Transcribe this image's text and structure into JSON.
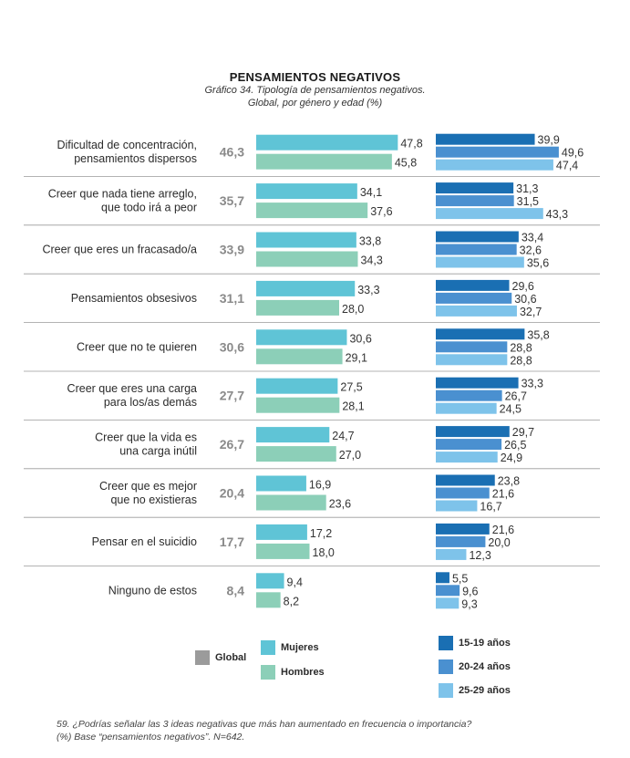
{
  "title": "PENSAMIENTOS NEGATIVOS",
  "subtitle_line1": "Gráfico 34. Tipología de pensamientos negativos.",
  "subtitle_line2": "Global, por género y edad (%)",
  "colors": {
    "global": "#9b9b9b",
    "mujeres": "#5fc4d6",
    "hombres": "#8ccfb8",
    "age_15_19": "#1a6fb3",
    "age_20_24": "#4a90d0",
    "age_25_29": "#7ec3ea",
    "separator": "#9a9a9a",
    "global_text": "#8a8a8a"
  },
  "chart_data": {
    "type": "bar",
    "orientation": "horizontal",
    "categories": [
      [
        "Dificultad de concentración,",
        "pensamientos dispersos"
      ],
      [
        "Creer que nada tiene arreglo,",
        "que todo irá a peor"
      ],
      [
        "Creer que eres un fracasado/a"
      ],
      [
        "Pensamientos obsesivos"
      ],
      [
        "Creer que no te quieren"
      ],
      [
        "Creer que eres una carga",
        "para los/as demás"
      ],
      [
        "Creer que la vida es",
        "una carga inútil"
      ],
      [
        "Creer que es mejor",
        "que no existieras"
      ],
      [
        "Pensar en el suicidio"
      ],
      [
        "Ninguno de estos"
      ]
    ],
    "global": [
      "46,3",
      "35,7",
      "33,9",
      "31,1",
      "30,6",
      "27,7",
      "26,7",
      "20,4",
      "17,7",
      "8,4"
    ],
    "series": [
      {
        "name": "Mujeres",
        "group": "gender",
        "color_key": "mujeres",
        "values": [
          47.8,
          34.1,
          33.8,
          33.3,
          30.6,
          27.5,
          24.7,
          16.9,
          17.2,
          9.4
        ],
        "labels": [
          "47,8",
          "34,1",
          "33,8",
          "33,3",
          "30,6",
          "27,5",
          "24,7",
          "16,9",
          "17,2",
          "9,4"
        ]
      },
      {
        "name": "Hombres",
        "group": "gender",
        "color_key": "hombres",
        "values": [
          45.8,
          37.6,
          34.3,
          28.0,
          29.1,
          28.1,
          27.0,
          23.6,
          18.0,
          8.2
        ],
        "labels": [
          "45,8",
          "37,6",
          "34,3",
          "28,0",
          "29,1",
          "28,1",
          "27,0",
          "23,6",
          "18,0",
          "8,2"
        ]
      },
      {
        "name": "15-19 años",
        "group": "age",
        "color_key": "age_15_19",
        "values": [
          39.9,
          31.3,
          33.4,
          29.6,
          35.8,
          33.3,
          29.7,
          23.8,
          21.6,
          5.5
        ],
        "labels": [
          "39,9",
          "31,3",
          "33,4",
          "29,6",
          "35,8",
          "33,3",
          "29,7",
          "23,8",
          "21,6",
          "5,5"
        ]
      },
      {
        "name": "20-24 años",
        "group": "age",
        "color_key": "age_20_24",
        "values": [
          49.6,
          31.5,
          32.6,
          30.6,
          28.8,
          26.7,
          26.5,
          21.6,
          20.0,
          9.6
        ],
        "labels": [
          "49,6",
          "31,5",
          "32,6",
          "30,6",
          "28,8",
          "26,7",
          "26,5",
          "21,6",
          "20,0",
          "9,6"
        ]
      },
      {
        "name": "25-29 años",
        "group": "age",
        "color_key": "age_25_29",
        "values": [
          47.4,
          43.3,
          35.6,
          32.7,
          28.8,
          24.5,
          24.9,
          16.7,
          12.3,
          9.3
        ],
        "labels": [
          "47,4",
          "43,3",
          "35,6",
          "32,7",
          "28,8",
          "24,5",
          "24,9",
          "16,7",
          "12,3",
          "9,3"
        ]
      }
    ],
    "legend": {
      "global": "Global",
      "mujeres": "Mujeres",
      "hombres": "Hombres",
      "age_15_19": "15-19 años",
      "age_20_24": "20-24 años",
      "age_25_29": "25-29 años"
    },
    "legend_position": "bottom",
    "grid": false
  },
  "footnote_line1": "59. ¿Podrías señalar las 3 ideas negativas que más han aumentado en frecuencia o importancia?",
  "footnote_line2": "(%) Base “pensamientos negativos”. N=642."
}
